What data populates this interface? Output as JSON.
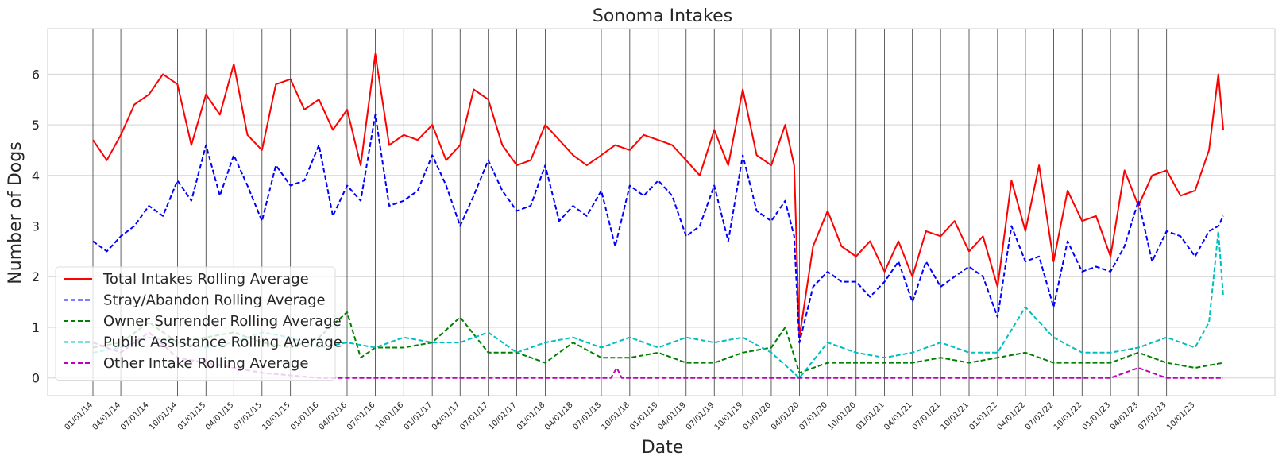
{
  "chart_data": {
    "type": "line",
    "title": "Sonoma Intakes",
    "xlabel": "Date",
    "ylabel": "Number of Dogs",
    "x_range": [
      "2014-01-01",
      "2023-12-31"
    ],
    "ylim": [
      -0.35,
      6.9
    ],
    "yticks": [
      0,
      1,
      2,
      3,
      4,
      5,
      6
    ],
    "xticks": [
      "01/01/14",
      "04/01/14",
      "07/01/14",
      "10/01/14",
      "01/01/15",
      "04/01/15",
      "07/01/15",
      "10/01/15",
      "01/01/16",
      "04/01/16",
      "07/01/16",
      "10/01/16",
      "01/01/17",
      "04/01/17",
      "07/01/17",
      "10/01/17",
      "01/01/18",
      "04/01/18",
      "07/01/18",
      "10/01/18",
      "01/01/19",
      "04/01/19",
      "07/01/19",
      "10/01/19",
      "01/01/20",
      "04/01/20",
      "07/01/20",
      "10/01/20",
      "01/01/21",
      "04/01/21",
      "07/01/21",
      "10/01/21",
      "01/01/22",
      "04/01/22",
      "07/01/22",
      "10/01/22",
      "01/01/23",
      "04/01/23",
      "07/01/23",
      "10/01/23"
    ],
    "grid": true,
    "legend_position": "lower-left",
    "series": [
      {
        "name": "Total Intakes Rolling Average",
        "color": "#ff0000",
        "dash": "solid",
        "x": [
          "2014-01-01",
          "2014-02-15",
          "2014-04-01",
          "2014-05-15",
          "2014-07-01",
          "2014-08-15",
          "2014-10-01",
          "2014-11-15",
          "2015-01-01",
          "2015-02-15",
          "2015-04-01",
          "2015-05-15",
          "2015-07-01",
          "2015-08-15",
          "2015-10-01",
          "2015-11-15",
          "2016-01-01",
          "2016-02-15",
          "2016-04-01",
          "2016-05-15",
          "2016-07-01",
          "2016-08-15",
          "2016-10-01",
          "2016-11-15",
          "2017-01-01",
          "2017-02-15",
          "2017-04-01",
          "2017-05-15",
          "2017-07-01",
          "2017-08-15",
          "2017-10-01",
          "2017-11-15",
          "2018-01-01",
          "2018-02-15",
          "2018-04-01",
          "2018-05-15",
          "2018-07-01",
          "2018-08-15",
          "2018-10-01",
          "2018-11-15",
          "2019-01-01",
          "2019-02-15",
          "2019-04-01",
          "2019-05-15",
          "2019-07-01",
          "2019-08-15",
          "2019-10-01",
          "2019-11-15",
          "2020-01-01",
          "2020-02-15",
          "2020-03-15",
          "2020-04-01",
          "2020-05-15",
          "2020-07-01",
          "2020-08-15",
          "2020-10-01",
          "2020-11-15",
          "2021-01-01",
          "2021-02-15",
          "2021-04-01",
          "2021-05-15",
          "2021-07-01",
          "2021-08-15",
          "2021-10-01",
          "2021-11-15",
          "2022-01-01",
          "2022-02-15",
          "2022-04-01",
          "2022-05-15",
          "2022-07-01",
          "2022-08-15",
          "2022-10-01",
          "2022-11-15",
          "2023-01-01",
          "2023-02-15",
          "2023-04-01",
          "2023-05-15",
          "2023-07-01",
          "2023-08-15",
          "2023-10-01",
          "2023-11-15",
          "2023-12-15",
          "2023-12-31"
        ],
        "values": [
          4.7,
          4.3,
          4.8,
          5.4,
          5.6,
          6.0,
          5.8,
          4.6,
          5.6,
          5.2,
          6.2,
          4.8,
          4.5,
          5.8,
          5.9,
          5.3,
          5.5,
          4.9,
          5.3,
          4.2,
          6.4,
          4.6,
          4.8,
          4.7,
          5.0,
          4.3,
          4.6,
          5.7,
          5.5,
          4.6,
          4.2,
          4.3,
          5.0,
          4.7,
          4.4,
          4.2,
          4.4,
          4.6,
          4.5,
          4.8,
          4.7,
          4.6,
          4.3,
          4.0,
          4.9,
          4.2,
          5.7,
          4.4,
          4.2,
          5.0,
          4.2,
          0.8,
          2.6,
          3.3,
          2.6,
          2.4,
          2.7,
          2.1,
          2.7,
          2.0,
          2.9,
          2.8,
          3.1,
          2.5,
          2.8,
          1.8,
          3.9,
          2.9,
          4.2,
          2.3,
          3.7,
          3.1,
          3.2,
          2.4,
          4.1,
          3.4,
          4.0,
          4.1,
          3.6,
          3.7,
          4.5,
          6.0,
          4.9
        ]
      },
      {
        "name": "Stray/Abandon Rolling Average",
        "color": "#0000ff",
        "dash": "dashed",
        "x": [
          "2014-01-01",
          "2014-02-15",
          "2014-04-01",
          "2014-05-15",
          "2014-07-01",
          "2014-08-15",
          "2014-10-01",
          "2014-11-15",
          "2015-01-01",
          "2015-02-15",
          "2015-04-01",
          "2015-05-15",
          "2015-07-01",
          "2015-08-15",
          "2015-10-01",
          "2015-11-15",
          "2016-01-01",
          "2016-02-15",
          "2016-04-01",
          "2016-05-15",
          "2016-07-01",
          "2016-08-15",
          "2016-10-01",
          "2016-11-15",
          "2017-01-01",
          "2017-02-15",
          "2017-04-01",
          "2017-05-15",
          "2017-07-01",
          "2017-08-15",
          "2017-10-01",
          "2017-11-15",
          "2018-01-01",
          "2018-02-15",
          "2018-04-01",
          "2018-05-15",
          "2018-07-01",
          "2018-08-15",
          "2018-10-01",
          "2018-11-15",
          "2019-01-01",
          "2019-02-15",
          "2019-04-01",
          "2019-05-15",
          "2019-07-01",
          "2019-08-15",
          "2019-10-01",
          "2019-11-15",
          "2020-01-01",
          "2020-02-15",
          "2020-03-15",
          "2020-04-01",
          "2020-05-15",
          "2020-07-01",
          "2020-08-15",
          "2020-10-01",
          "2020-11-15",
          "2021-01-01",
          "2021-02-15",
          "2021-04-01",
          "2021-05-15",
          "2021-07-01",
          "2021-08-15",
          "2021-10-01",
          "2021-11-15",
          "2022-01-01",
          "2022-02-15",
          "2022-04-01",
          "2022-05-15",
          "2022-07-01",
          "2022-08-15",
          "2022-10-01",
          "2022-11-15",
          "2023-01-01",
          "2023-02-15",
          "2023-04-01",
          "2023-05-15",
          "2023-07-01",
          "2023-08-15",
          "2023-10-01",
          "2023-11-15",
          "2023-12-15",
          "2023-12-31"
        ],
        "values": [
          2.7,
          2.5,
          2.8,
          3.0,
          3.4,
          3.2,
          3.9,
          3.5,
          4.6,
          3.6,
          4.4,
          3.8,
          3.1,
          4.2,
          3.8,
          3.9,
          4.6,
          3.2,
          3.8,
          3.5,
          5.2,
          3.4,
          3.5,
          3.7,
          4.4,
          3.8,
          3.0,
          3.6,
          4.3,
          3.7,
          3.3,
          3.4,
          4.2,
          3.1,
          3.4,
          3.2,
          3.7,
          2.6,
          3.8,
          3.6,
          3.9,
          3.6,
          2.8,
          3.0,
          3.8,
          2.7,
          4.4,
          3.3,
          3.1,
          3.5,
          2.8,
          0.7,
          1.8,
          2.1,
          1.9,
          1.9,
          1.6,
          1.9,
          2.3,
          1.5,
          2.3,
          1.8,
          2.0,
          2.2,
          2.0,
          1.2,
          3.0,
          2.3,
          2.4,
          1.4,
          2.7,
          2.1,
          2.2,
          2.1,
          2.6,
          3.5,
          2.3,
          2.9,
          2.8,
          2.4,
          2.9,
          3.0,
          3.2
        ]
      },
      {
        "name": "Owner Surrender Rolling Average",
        "color": "#008000",
        "dash": "dashed",
        "x": [
          "2014-01-01",
          "2014-04-01",
          "2014-07-01",
          "2014-10-01",
          "2015-01-01",
          "2015-04-01",
          "2015-07-01",
          "2015-10-01",
          "2016-01-01",
          "2016-04-01",
          "2016-05-15",
          "2016-07-01",
          "2016-10-01",
          "2017-01-01",
          "2017-04-01",
          "2017-07-01",
          "2017-10-01",
          "2018-01-01",
          "2018-04-01",
          "2018-07-01",
          "2018-10-01",
          "2019-01-01",
          "2019-04-01",
          "2019-07-01",
          "2019-10-01",
          "2020-01-01",
          "2020-02-15",
          "2020-04-01",
          "2020-07-01",
          "2020-10-01",
          "2021-01-01",
          "2021-04-01",
          "2021-07-01",
          "2021-10-01",
          "2022-01-01",
          "2022-04-01",
          "2022-07-01",
          "2022-10-01",
          "2023-01-01",
          "2023-04-01",
          "2023-07-01",
          "2023-10-01",
          "2023-12-31"
        ],
        "values": [
          0.6,
          0.7,
          1.1,
          0.7,
          0.8,
          0.9,
          0.7,
          0.6,
          0.8,
          1.3,
          0.4,
          0.6,
          0.6,
          0.7,
          1.2,
          0.5,
          0.5,
          0.3,
          0.7,
          0.4,
          0.4,
          0.5,
          0.3,
          0.3,
          0.5,
          0.6,
          1.0,
          0.1,
          0.3,
          0.3,
          0.3,
          0.3,
          0.4,
          0.3,
          0.4,
          0.5,
          0.3,
          0.3,
          0.3,
          0.5,
          0.3,
          0.2,
          0.3
        ]
      },
      {
        "name": "Public Assistance Rolling Average",
        "color": "#00bfbf",
        "dash": "dashed",
        "x": [
          "2014-01-01",
          "2014-04-01",
          "2014-07-01",
          "2014-10-01",
          "2015-01-01",
          "2015-04-01",
          "2015-07-01",
          "2015-10-01",
          "2016-01-01",
          "2016-04-01",
          "2016-07-01",
          "2016-10-01",
          "2017-01-01",
          "2017-04-01",
          "2017-07-01",
          "2017-10-01",
          "2018-01-01",
          "2018-04-01",
          "2018-07-01",
          "2018-10-01",
          "2019-01-01",
          "2019-04-01",
          "2019-07-01",
          "2019-10-01",
          "2020-01-01",
          "2020-04-01",
          "2020-07-01",
          "2020-10-01",
          "2021-01-01",
          "2021-04-01",
          "2021-07-01",
          "2021-10-01",
          "2022-01-01",
          "2022-04-01",
          "2022-07-01",
          "2022-10-01",
          "2023-01-01",
          "2023-04-01",
          "2023-07-01",
          "2023-10-01",
          "2023-11-15",
          "2023-12-15",
          "2023-12-31"
        ],
        "values": [
          0.5,
          0.6,
          0.8,
          0.7,
          0.6,
          0.7,
          0.9,
          0.8,
          0.6,
          0.7,
          0.6,
          0.8,
          0.7,
          0.7,
          0.9,
          0.5,
          0.7,
          0.8,
          0.6,
          0.8,
          0.6,
          0.8,
          0.7,
          0.8,
          0.5,
          0.0,
          0.7,
          0.5,
          0.4,
          0.5,
          0.7,
          0.5,
          0.5,
          1.4,
          0.8,
          0.5,
          0.5,
          0.6,
          0.8,
          0.6,
          1.1,
          2.9,
          1.6
        ]
      },
      {
        "name": "Other Intake Rolling Average",
        "color": "#bf00bf",
        "dash": "dashed",
        "x": [
          "2014-01-01",
          "2014-04-01",
          "2014-07-01",
          "2014-10-01",
          "2015-01-01",
          "2015-07-01",
          "2016-01-01",
          "2016-04-01",
          "2016-07-01",
          "2017-01-01",
          "2017-07-01",
          "2018-01-01",
          "2018-08-01",
          "2018-08-20",
          "2018-09-05",
          "2019-07-01",
          "2020-01-01",
          "2021-01-01",
          "2022-01-01",
          "2023-01-01",
          "2023-04-01",
          "2023-05-15",
          "2023-07-01",
          "2023-12-31"
        ],
        "values": [
          0.7,
          0.5,
          0.9,
          0.4,
          0.3,
          0.1,
          0.0,
          0.0,
          0.0,
          0.0,
          0.0,
          0.0,
          0.0,
          0.2,
          0.0,
          0.0,
          0.0,
          0.0,
          0.0,
          0.0,
          0.2,
          0.1,
          0.0,
          0.0
        ]
      }
    ]
  }
}
